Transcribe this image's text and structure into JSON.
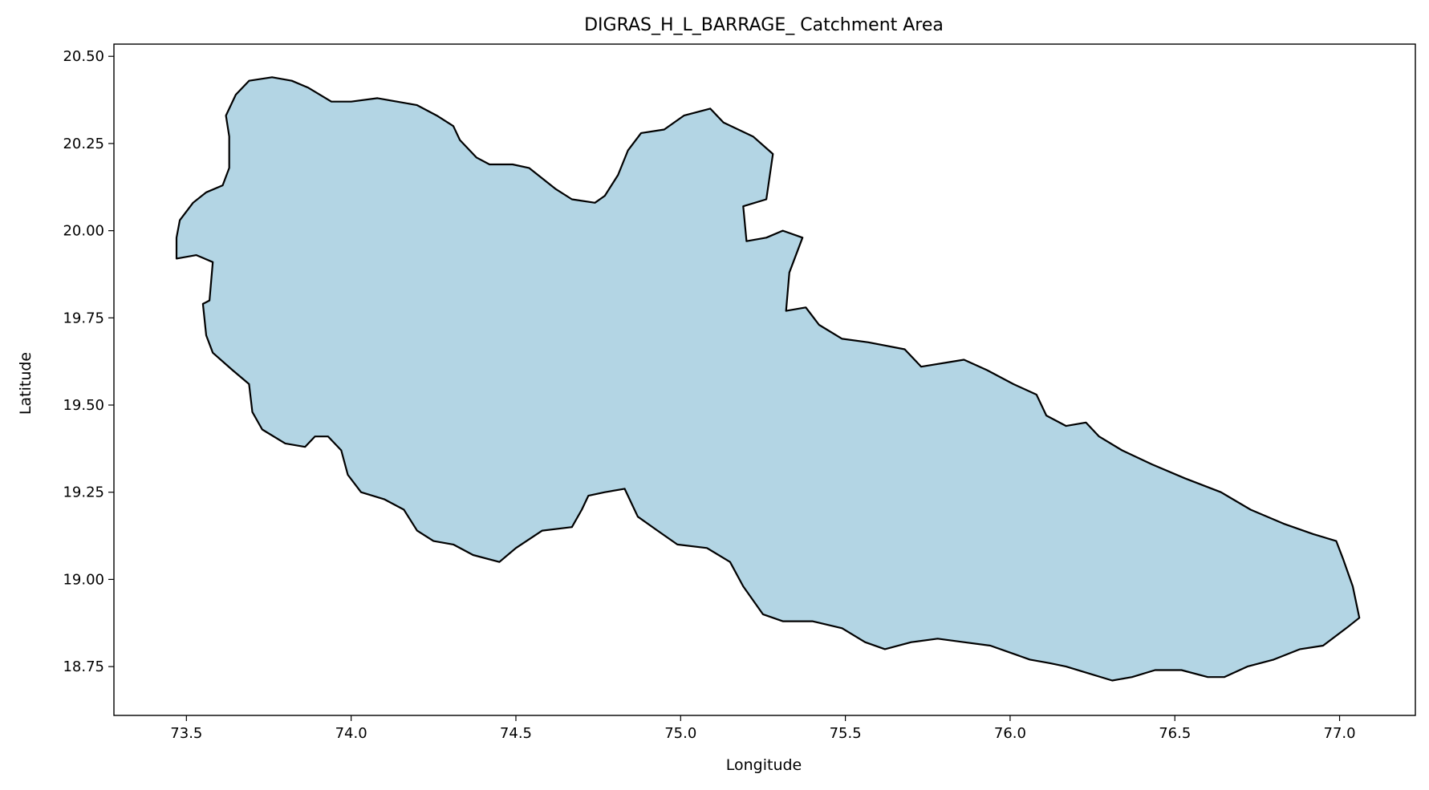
{
  "chart_data": {
    "type": "map",
    "title": "DIGRAS_H_L_BARRAGE_ Catchment Area",
    "xlabel": "Longitude",
    "ylabel": "Latitude",
    "xlim": [
      73.28,
      77.23
    ],
    "ylim": [
      18.61,
      20.535
    ],
    "x_ticks": [
      "73.5",
      "74.0",
      "74.5",
      "75.0",
      "75.5",
      "76.0",
      "76.5",
      "77.0"
    ],
    "y_ticks": [
      "20.50",
      "20.25",
      "20.00",
      "19.75",
      "19.50",
      "19.25",
      "19.00",
      "18.75"
    ],
    "grid": false,
    "region": {
      "name": "DIGRAS_H_L_BARRAGE_",
      "fill_color": "#b3d5e4",
      "edge_color": "#000000",
      "outline": [
        [
          73.47,
          19.92
        ],
        [
          73.53,
          19.93
        ],
        [
          73.58,
          19.91
        ],
        [
          73.57,
          19.8
        ],
        [
          73.55,
          19.79
        ],
        [
          73.56,
          19.7
        ],
        [
          73.58,
          19.65
        ],
        [
          73.64,
          19.6
        ],
        [
          73.69,
          19.56
        ],
        [
          73.7,
          19.48
        ],
        [
          73.73,
          19.43
        ],
        [
          73.8,
          19.39
        ],
        [
          73.86,
          19.38
        ],
        [
          73.89,
          19.41
        ],
        [
          73.93,
          19.41
        ],
        [
          73.97,
          19.37
        ],
        [
          73.99,
          19.3
        ],
        [
          74.03,
          19.25
        ],
        [
          74.1,
          19.23
        ],
        [
          74.16,
          19.2
        ],
        [
          74.2,
          19.14
        ],
        [
          74.25,
          19.11
        ],
        [
          74.31,
          19.1
        ],
        [
          74.37,
          19.07
        ],
        [
          74.45,
          19.05
        ],
        [
          74.5,
          19.09
        ],
        [
          74.58,
          19.14
        ],
        [
          74.67,
          19.15
        ],
        [
          74.7,
          19.2
        ],
        [
          74.72,
          19.24
        ],
        [
          74.77,
          19.25
        ],
        [
          74.83,
          19.26
        ],
        [
          74.87,
          19.18
        ],
        [
          74.93,
          19.14
        ],
        [
          74.99,
          19.1
        ],
        [
          75.08,
          19.09
        ],
        [
          75.15,
          19.05
        ],
        [
          75.19,
          18.98
        ],
        [
          75.25,
          18.9
        ],
        [
          75.31,
          18.88
        ],
        [
          75.4,
          18.88
        ],
        [
          75.49,
          18.86
        ],
        [
          75.56,
          18.82
        ],
        [
          75.62,
          18.8
        ],
        [
          75.7,
          18.82
        ],
        [
          75.78,
          18.83
        ],
        [
          75.86,
          18.82
        ],
        [
          75.94,
          18.81
        ],
        [
          76.0,
          18.79
        ],
        [
          76.06,
          18.77
        ],
        [
          76.12,
          18.76
        ],
        [
          76.17,
          18.75
        ],
        [
          76.24,
          18.73
        ],
        [
          76.31,
          18.71
        ],
        [
          76.37,
          18.72
        ],
        [
          76.44,
          18.74
        ],
        [
          76.52,
          18.74
        ],
        [
          76.6,
          18.72
        ],
        [
          76.65,
          18.72
        ],
        [
          76.72,
          18.75
        ],
        [
          76.8,
          18.77
        ],
        [
          76.88,
          18.8
        ],
        [
          76.95,
          18.81
        ],
        [
          77.02,
          18.86
        ],
        [
          77.06,
          18.89
        ],
        [
          77.04,
          18.98
        ],
        [
          77.01,
          19.06
        ],
        [
          76.99,
          19.11
        ],
        [
          76.92,
          19.13
        ],
        [
          76.83,
          19.16
        ],
        [
          76.73,
          19.2
        ],
        [
          76.64,
          19.25
        ],
        [
          76.53,
          19.29
        ],
        [
          76.43,
          19.33
        ],
        [
          76.34,
          19.37
        ],
        [
          76.27,
          19.41
        ],
        [
          76.23,
          19.45
        ],
        [
          76.17,
          19.44
        ],
        [
          76.11,
          19.47
        ],
        [
          76.08,
          19.53
        ],
        [
          76.01,
          19.56
        ],
        [
          75.93,
          19.6
        ],
        [
          75.86,
          19.63
        ],
        [
          75.73,
          19.61
        ],
        [
          75.68,
          19.66
        ],
        [
          75.57,
          19.68
        ],
        [
          75.49,
          19.69
        ],
        [
          75.42,
          19.73
        ],
        [
          75.38,
          19.78
        ],
        [
          75.32,
          19.77
        ],
        [
          75.33,
          19.88
        ],
        [
          75.37,
          19.98
        ],
        [
          75.31,
          20.0
        ],
        [
          75.26,
          19.98
        ],
        [
          75.2,
          19.97
        ],
        [
          75.19,
          20.07
        ],
        [
          75.26,
          20.09
        ],
        [
          75.28,
          20.22
        ],
        [
          75.22,
          20.27
        ],
        [
          75.13,
          20.31
        ],
        [
          75.09,
          20.35
        ],
        [
          75.01,
          20.33
        ],
        [
          74.95,
          20.29
        ],
        [
          74.88,
          20.28
        ],
        [
          74.84,
          20.23
        ],
        [
          74.81,
          20.16
        ],
        [
          74.77,
          20.1
        ],
        [
          74.74,
          20.08
        ],
        [
          74.67,
          20.09
        ],
        [
          74.62,
          20.12
        ],
        [
          74.58,
          20.15
        ],
        [
          74.54,
          20.18
        ],
        [
          74.49,
          20.19
        ],
        [
          74.42,
          20.19
        ],
        [
          74.38,
          20.21
        ],
        [
          74.33,
          20.26
        ],
        [
          74.31,
          20.3
        ],
        [
          74.26,
          20.33
        ],
        [
          74.2,
          20.36
        ],
        [
          74.08,
          20.38
        ],
        [
          74.0,
          20.37
        ],
        [
          73.94,
          20.37
        ],
        [
          73.87,
          20.41
        ],
        [
          73.82,
          20.43
        ],
        [
          73.76,
          20.44
        ],
        [
          73.69,
          20.43
        ],
        [
          73.65,
          20.39
        ],
        [
          73.62,
          20.33
        ],
        [
          73.63,
          20.27
        ],
        [
          73.63,
          20.18
        ],
        [
          73.61,
          20.13
        ],
        [
          73.56,
          20.11
        ],
        [
          73.52,
          20.08
        ],
        [
          73.48,
          20.03
        ],
        [
          73.47,
          19.98
        ]
      ]
    }
  }
}
